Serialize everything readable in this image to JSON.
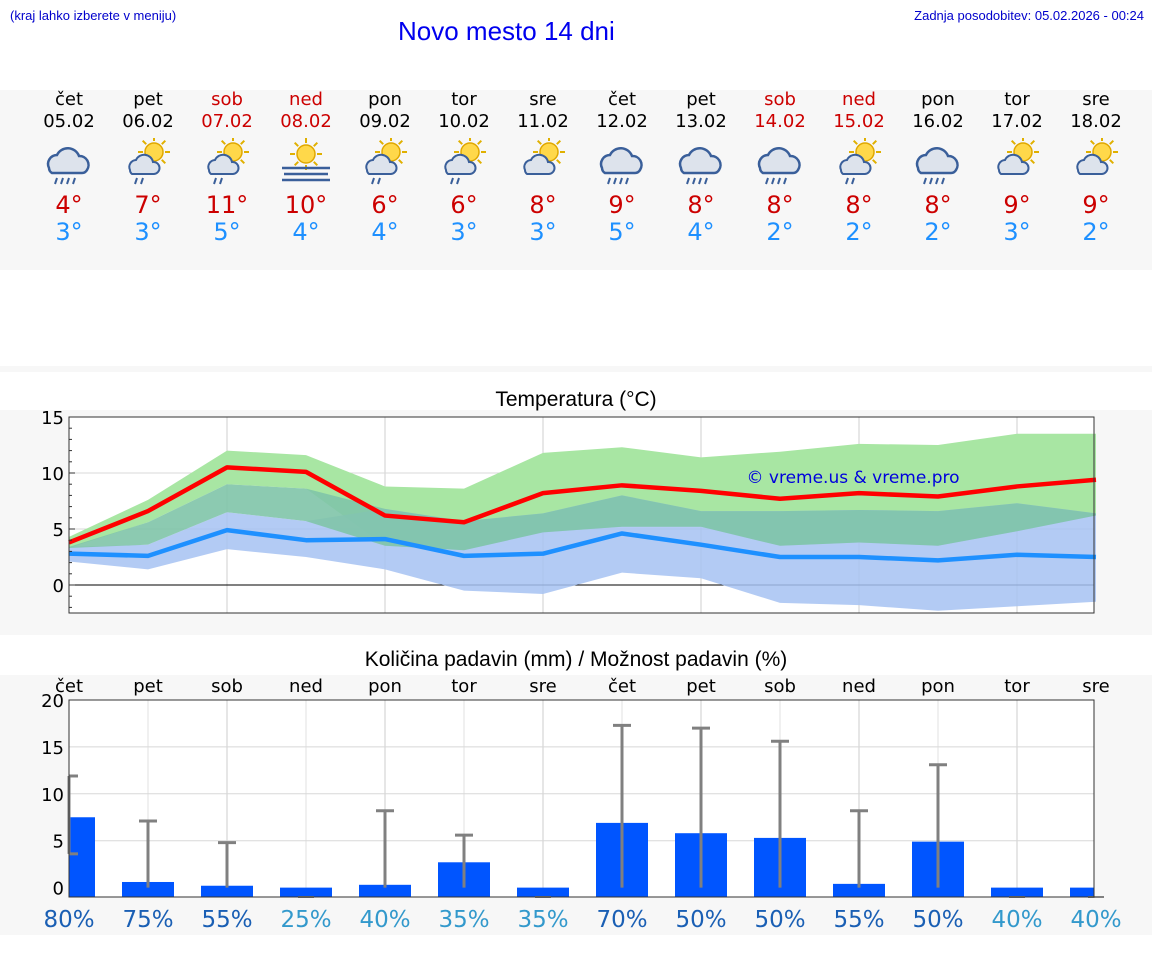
{
  "header": {
    "hint": "(kraj lahko izberete v meniju)",
    "title": "Novo mesto 14 dni",
    "updated": "Zadnja posodobitev: 05.02.2026 - 00:24"
  },
  "days": [
    {
      "name": "čet",
      "date": "05.02",
      "weekend": false,
      "icon": "rain-cloud-icon",
      "tmax": "4°",
      "tmin": "3°"
    },
    {
      "name": "pet",
      "date": "06.02",
      "weekend": false,
      "icon": "sun-cloud-rain-icon",
      "tmax": "7°",
      "tmin": "3°"
    },
    {
      "name": "sob",
      "date": "07.02",
      "weekend": true,
      "icon": "sun-cloud-rain-icon",
      "tmax": "11°",
      "tmin": "5°"
    },
    {
      "name": "ned",
      "date": "08.02",
      "weekend": true,
      "icon": "sun-fog-icon",
      "tmax": "10°",
      "tmin": "4°"
    },
    {
      "name": "pon",
      "date": "09.02",
      "weekend": false,
      "icon": "sun-cloud-rain-icon",
      "tmax": "6°",
      "tmin": "4°"
    },
    {
      "name": "tor",
      "date": "10.02",
      "weekend": false,
      "icon": "sun-cloud-rain-icon",
      "tmax": "6°",
      "tmin": "3°"
    },
    {
      "name": "sre",
      "date": "11.02",
      "weekend": false,
      "icon": "sun-cloud-icon",
      "tmax": "8°",
      "tmin": "3°"
    },
    {
      "name": "čet",
      "date": "12.02",
      "weekend": false,
      "icon": "rain-cloud-icon",
      "tmax": "9°",
      "tmin": "5°"
    },
    {
      "name": "pet",
      "date": "13.02",
      "weekend": false,
      "icon": "rain-cloud-icon",
      "tmax": "8°",
      "tmin": "4°"
    },
    {
      "name": "sob",
      "date": "14.02",
      "weekend": true,
      "icon": "rain-cloud-icon",
      "tmax": "8°",
      "tmin": "2°"
    },
    {
      "name": "ned",
      "date": "15.02",
      "weekend": true,
      "icon": "sun-cloud-rain-icon",
      "tmax": "8°",
      "tmin": "2°"
    },
    {
      "name": "pon",
      "date": "16.02",
      "weekend": false,
      "icon": "rain-cloud-icon",
      "tmax": "8°",
      "tmin": "2°"
    },
    {
      "name": "tor",
      "date": "17.02",
      "weekend": false,
      "icon": "sun-cloud-icon",
      "tmax": "9°",
      "tmin": "3°"
    },
    {
      "name": "sre",
      "date": "18.02",
      "weekend": false,
      "icon": "sun-cloud-icon",
      "tmax": "9°",
      "tmin": "2°"
    }
  ],
  "colors": {
    "max_line": "#ff0000",
    "min_line": "#1e90ff",
    "max_band": "#a8e6a3",
    "min_band": "#a6c2f2",
    "overlap_band": "#7fc4a8",
    "bar": "#0055ff",
    "whisker": "#808080",
    "pct_dark": "#1a5fb4",
    "pct_light": "#3399cc"
  },
  "chart_data": [
    {
      "type": "line",
      "title": "Temperatura (°C)",
      "watermark": "© vreme.us & vreme.pro",
      "x": [
        0,
        1,
        2,
        3,
        4,
        5,
        6,
        7,
        8,
        9,
        10,
        11,
        12,
        13
      ],
      "ylim": [
        -2.5,
        15
      ],
      "yticks": [
        0,
        5,
        10,
        15
      ],
      "series": [
        {
          "name": "max",
          "values": [
            3.8,
            6.6,
            10.5,
            10.1,
            6.2,
            5.6,
            8.2,
            8.9,
            8.4,
            7.7,
            8.2,
            7.9,
            8.8,
            9.4
          ]
        },
        {
          "name": "min",
          "values": [
            2.8,
            2.6,
            4.9,
            4.0,
            4.1,
            2.6,
            2.8,
            4.6,
            3.6,
            2.5,
            2.5,
            2.2,
            2.7,
            2.5
          ]
        }
      ],
      "bands": [
        {
          "name": "max_range",
          "low": [
            3.3,
            5.6,
            9.0,
            8.6,
            3.5,
            3.1,
            4.7,
            5.2,
            5.2,
            3.5,
            3.8,
            3.5,
            4.8,
            6.2
          ],
          "high": [
            4.3,
            7.6,
            12.0,
            11.6,
            8.8,
            8.6,
            11.8,
            12.3,
            11.4,
            11.9,
            12.6,
            12.5,
            13.5,
            13.5
          ]
        },
        {
          "name": "min_range",
          "low": [
            2.1,
            1.4,
            3.2,
            2.5,
            1.4,
            -0.5,
            -0.8,
            1.1,
            0.6,
            -1.6,
            -1.8,
            -2.3,
            -1.9,
            -1.5
          ],
          "high": [
            3.4,
            3.6,
            6.5,
            5.7,
            6.8,
            5.7,
            6.4,
            8.0,
            6.6,
            6.6,
            6.7,
            6.6,
            7.3,
            6.4
          ]
        }
      ]
    },
    {
      "type": "bar",
      "title": "Količina padavin (mm) / Možnost padavin (%)",
      "categories": [
        "čet",
        "pet",
        "sob",
        "ned",
        "pon",
        "tor",
        "sre",
        "čet",
        "pet",
        "sob",
        "ned",
        "pon",
        "tor",
        "sre"
      ],
      "ylim": [
        -1,
        20
      ],
      "yticks": [
        0,
        5,
        10,
        15,
        20
      ],
      "values": [
        7.5,
        0.6,
        0.2,
        0.0,
        0.3,
        2.7,
        0.0,
        6.9,
        5.8,
        5.3,
        0.4,
        4.9,
        0.0,
        0.0
      ],
      "error_high": [
        11.9,
        7.1,
        4.8,
        0.0,
        8.2,
        5.6,
        0.0,
        17.3,
        17.0,
        15.6,
        8.2,
        13.1,
        0.0,
        0.0
      ],
      "error_low": [
        3.6,
        0,
        0,
        0,
        0,
        0,
        0,
        0,
        0,
        0,
        0,
        0,
        0,
        0
      ],
      "probability": [
        "80%",
        "75%",
        "55%",
        "25%",
        "40%",
        "35%",
        "35%",
        "70%",
        "50%",
        "50%",
        "55%",
        "50%",
        "40%",
        "40%"
      ],
      "probability_dark": [
        true,
        true,
        true,
        false,
        false,
        false,
        false,
        true,
        true,
        true,
        true,
        true,
        false,
        false
      ]
    }
  ]
}
